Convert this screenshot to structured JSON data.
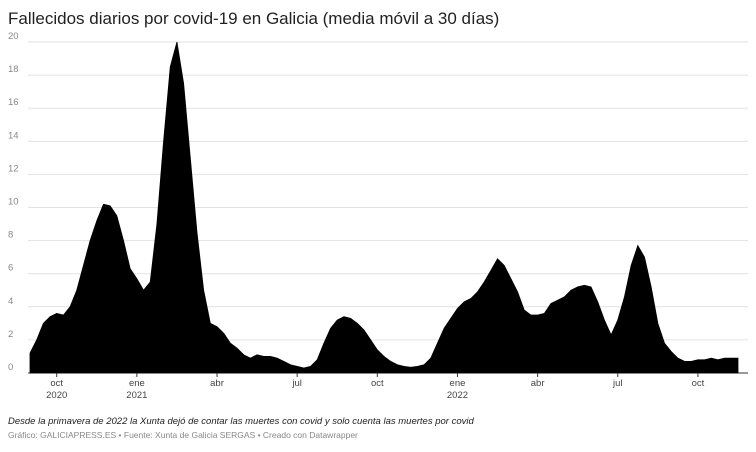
{
  "chart_data": {
    "type": "area",
    "title": "Fallecidos diarios por covid-19 en Galicia (media móvil a 30 días)",
    "note": "Desde la primavera de 2022 la Xunta dejó de contar las muertes con covid y solo cuenta las muertes por covid",
    "credit": "Gráfico: GALICIAPRESS.ES • Fuente: Xunta de Galicia SERGAS • Creado con Datawrapper",
    "color": "#000000",
    "grid": true,
    "ylim": [
      0,
      20
    ],
    "yticks": [
      0,
      2,
      4,
      6,
      8,
      10,
      12,
      14,
      16,
      18,
      20
    ],
    "categories": [
      null,
      null,
      null,
      null,
      "oct",
      null,
      null,
      null,
      null,
      null,
      null,
      null,
      null,
      null,
      null,
      null,
      "ene",
      null,
      null,
      null,
      null,
      null,
      null,
      null,
      null,
      null,
      null,
      null,
      "abr",
      null,
      null,
      null,
      null,
      null,
      null,
      null,
      null,
      null,
      null,
      null,
      "jul",
      null,
      null,
      null,
      null,
      null,
      null,
      null,
      null,
      null,
      null,
      null,
      "oct",
      null,
      null,
      null,
      null,
      null,
      null,
      null,
      null,
      null,
      null,
      null,
      "ene",
      null,
      null,
      null,
      null,
      null,
      null,
      null,
      null,
      null,
      null,
      null,
      "abr",
      null,
      null,
      null,
      null,
      null,
      null,
      null,
      null,
      null,
      null,
      null,
      "jul",
      null,
      null,
      null,
      null,
      null,
      null,
      null,
      null,
      null,
      null,
      null,
      "oct",
      null,
      null,
      null,
      null,
      null,
      null
    ],
    "category_years": [
      null,
      null,
      null,
      null,
      "2020",
      null,
      null,
      null,
      null,
      null,
      null,
      null,
      null,
      null,
      null,
      null,
      "2021",
      null,
      null,
      null,
      null,
      null,
      null,
      null,
      null,
      null,
      null,
      null,
      null,
      null,
      null,
      null,
      null,
      null,
      null,
      null,
      null,
      null,
      null,
      null,
      null,
      null,
      null,
      null,
      null,
      null,
      null,
      null,
      null,
      null,
      null,
      null,
      null,
      null,
      null,
      null,
      null,
      null,
      null,
      null,
      null,
      null,
      null,
      null,
      "2022",
      null,
      null,
      null,
      null,
      null,
      null,
      null,
      null,
      null,
      null,
      null,
      null,
      null,
      null,
      null,
      null,
      null,
      null,
      null,
      null,
      null,
      null,
      null,
      null,
      null,
      null,
      null,
      null,
      null,
      null,
      null,
      null,
      null,
      null,
      null,
      null,
      null,
      null,
      null,
      null,
      null,
      null
    ],
    "values": [
      1.2,
      2.0,
      3.0,
      3.4,
      3.6,
      3.5,
      4.0,
      5.0,
      6.5,
      8.0,
      9.2,
      10.2,
      10.1,
      9.5,
      8.0,
      6.3,
      5.7,
      5.0,
      5.5,
      9.0,
      14.0,
      18.5,
      20.0,
      17.5,
      13.0,
      8.5,
      5.0,
      3.0,
      2.8,
      2.4,
      1.8,
      1.5,
      1.1,
      0.9,
      1.1,
      1.0,
      1.0,
      0.9,
      0.7,
      0.5,
      0.4,
      0.3,
      0.4,
      0.8,
      1.8,
      2.7,
      3.2,
      3.4,
      3.3,
      3.0,
      2.6,
      2.0,
      1.4,
      1.0,
      0.7,
      0.5,
      0.4,
      0.35,
      0.4,
      0.5,
      0.9,
      1.8,
      2.7,
      3.3,
      3.9,
      4.3,
      4.5,
      4.9,
      5.5,
      6.2,
      6.9,
      6.5,
      5.7,
      4.9,
      3.8,
      3.5,
      3.5,
      3.6,
      4.2,
      4.4,
      4.6,
      5.0,
      5.2,
      5.3,
      5.2,
      4.3,
      3.2,
      2.3,
      3.2,
      4.6,
      6.5,
      7.7,
      7.0,
      5.2,
      3.0,
      1.8,
      1.3,
      0.9,
      0.7,
      0.7,
      0.8,
      0.8,
      0.9,
      0.8,
      0.9,
      0.9,
      0.9
    ]
  }
}
